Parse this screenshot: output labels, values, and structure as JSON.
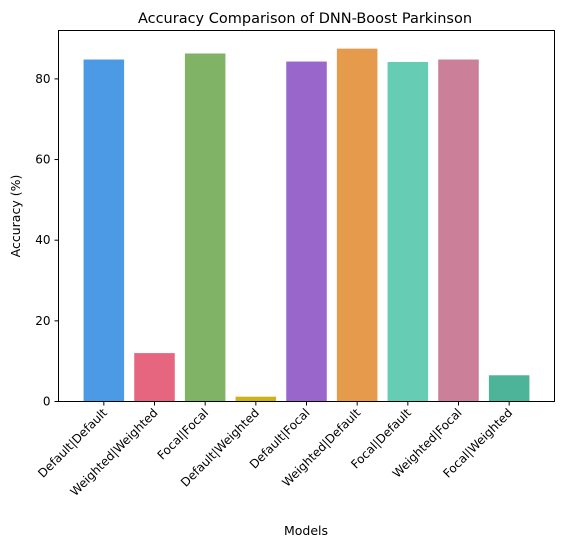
{
  "chart_data": {
    "type": "bar",
    "title": "Accuracy Comparison of DNN-Boost Parkinson",
    "xlabel": "Models",
    "ylabel": "Accuracy (%)",
    "ylim": [
      0,
      92
    ],
    "yticks": [
      0,
      20,
      40,
      60,
      80
    ],
    "grid": false,
    "categories": [
      "Default|Default",
      "Weighted|Weighted",
      "Focal|Focal",
      "Default|Weighted",
      "Default|Focal",
      "Weighted|Default",
      "Focal|Default",
      "Weighted|Focal",
      "Focal|Weighted"
    ],
    "values": [
      84.8,
      12.0,
      86.3,
      1.2,
      84.3,
      87.5,
      84.2,
      84.8,
      6.5
    ],
    "colors": [
      "#4c99e6",
      "#e6667f",
      "#80b366",
      "#ccb31a",
      "#9966cc",
      "#e69a4c",
      "#66ccb3",
      "#cc7f99",
      "#4db399"
    ]
  }
}
